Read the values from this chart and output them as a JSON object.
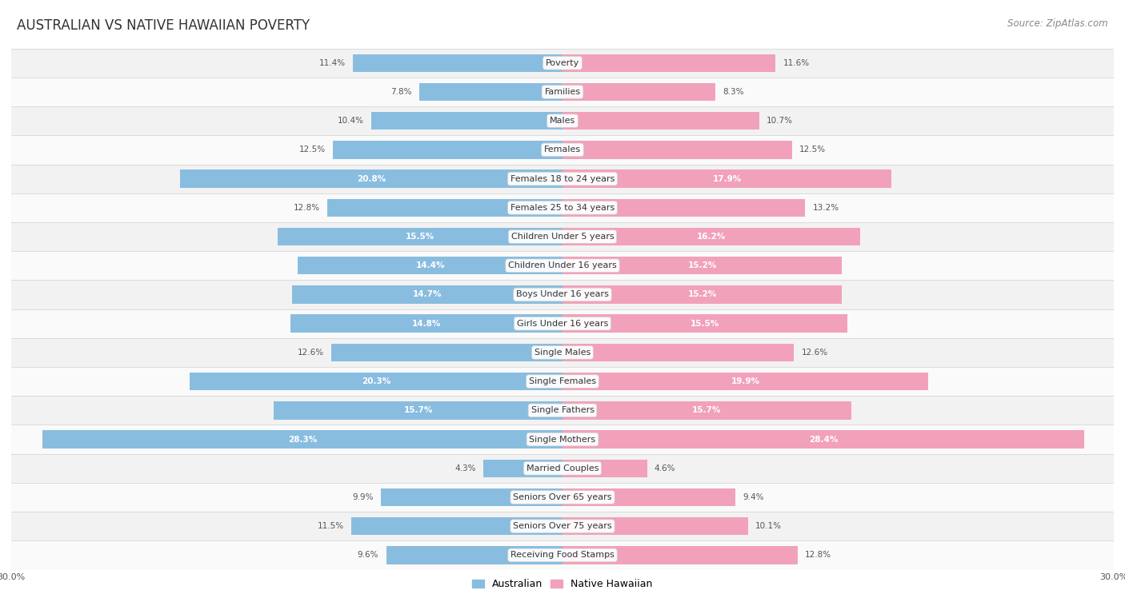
{
  "title": "AUSTRALIAN VS NATIVE HAWAIIAN POVERTY",
  "source": "Source: ZipAtlas.com",
  "categories": [
    "Poverty",
    "Families",
    "Males",
    "Females",
    "Females 18 to 24 years",
    "Females 25 to 34 years",
    "Children Under 5 years",
    "Children Under 16 years",
    "Boys Under 16 years",
    "Girls Under 16 years",
    "Single Males",
    "Single Females",
    "Single Fathers",
    "Single Mothers",
    "Married Couples",
    "Seniors Over 65 years",
    "Seniors Over 75 years",
    "Receiving Food Stamps"
  ],
  "left_values": [
    11.4,
    7.8,
    10.4,
    12.5,
    20.8,
    12.8,
    15.5,
    14.4,
    14.7,
    14.8,
    12.6,
    20.3,
    15.7,
    28.3,
    4.3,
    9.9,
    11.5,
    9.6
  ],
  "right_values": [
    11.6,
    8.3,
    10.7,
    12.5,
    17.9,
    13.2,
    16.2,
    15.2,
    15.2,
    15.5,
    12.6,
    19.9,
    15.7,
    28.4,
    4.6,
    9.4,
    10.1,
    12.8
  ],
  "left_color": "#89bde0",
  "right_color": "#f2a1bb",
  "bar_height": 0.62,
  "xlim": 30.0,
  "background_color": "#ffffff",
  "row_color_even": "#f2f2f2",
  "row_color_odd": "#fafafa",
  "left_label": "Australian",
  "right_label": "Native Hawaiian",
  "title_fontsize": 12,
  "source_fontsize": 8.5,
  "cat_fontsize": 8,
  "value_fontsize": 7.5,
  "axis_fontsize": 8,
  "legend_fontsize": 9,
  "white_text_threshold": 14
}
